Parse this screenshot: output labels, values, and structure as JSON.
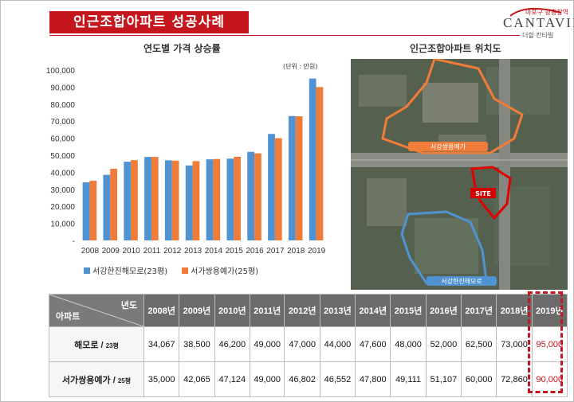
{
  "header": {
    "title": "인근조합아파트 성공사례",
    "logo": {
      "top_text": "마포구 광흥창역",
      "main_text": "CANTAVIL",
      "bottom_text": "더힐 칸타빌"
    }
  },
  "left_panel": {
    "title": "연도별 가격 상승률",
    "unit": "(단위 : 만원)"
  },
  "right_panel": {
    "title": "인근조합아파트 위치도",
    "labels": {
      "top_complex": "서강쌍용예가",
      "site": "SITE",
      "bottom_complex": "서강한진해모로"
    }
  },
  "colors": {
    "series1": "#4f93d2",
    "series2": "#ef7c38",
    "accent": "#c4161c"
  },
  "chart_data": {
    "type": "bar",
    "categories": [
      "2008",
      "2009",
      "2010",
      "2011",
      "2012",
      "2013",
      "2014",
      "2015",
      "2016",
      "2017",
      "2018",
      "2019"
    ],
    "series": [
      {
        "name": "서강한진해모로(23평)",
        "values": [
          34067,
          38500,
          46200,
          49000,
          47000,
          44000,
          47600,
          48000,
          52000,
          62500,
          73000,
          95000
        ]
      },
      {
        "name": "서가쌍용예가(25평)",
        "values": [
          35000,
          42065,
          47124,
          49000,
          46802,
          46552,
          47800,
          49111,
          51107,
          60000,
          72860,
          90000
        ]
      }
    ],
    "y_ticks": [
      "100,000",
      "90,000",
      "80,000",
      "70,000",
      "60,000",
      "50,000",
      "40,000",
      "30,000",
      "20,000",
      "10,000",
      "-"
    ],
    "ylim": [
      0,
      100000
    ],
    "grid": false,
    "legend_position": "bottom"
  },
  "table": {
    "corner_top": "년도",
    "corner_bottom": "아파트",
    "columns": [
      "2008년",
      "2009년",
      "2010년",
      "2011년",
      "2012년",
      "2013년",
      "2014년",
      "2015년",
      "2016년",
      "2017년",
      "2018년",
      "2019년"
    ],
    "rows": [
      {
        "name": "해모로 / ",
        "size": "23평",
        "values": [
          "34,067",
          "38,500",
          "46,200",
          "49,000",
          "47,000",
          "44,000",
          "47,600",
          "48,000",
          "52,000",
          "62,500",
          "73,000",
          "95,000"
        ]
      },
      {
        "name": "서가쌍용예가 / ",
        "size": "25평",
        "values": [
          "35,000",
          "42,065",
          "47,124",
          "49,000",
          "46,802",
          "46,552",
          "47,800",
          "49,111",
          "51,107",
          "60,000",
          "72,860",
          "90,000"
        ]
      }
    ]
  }
}
